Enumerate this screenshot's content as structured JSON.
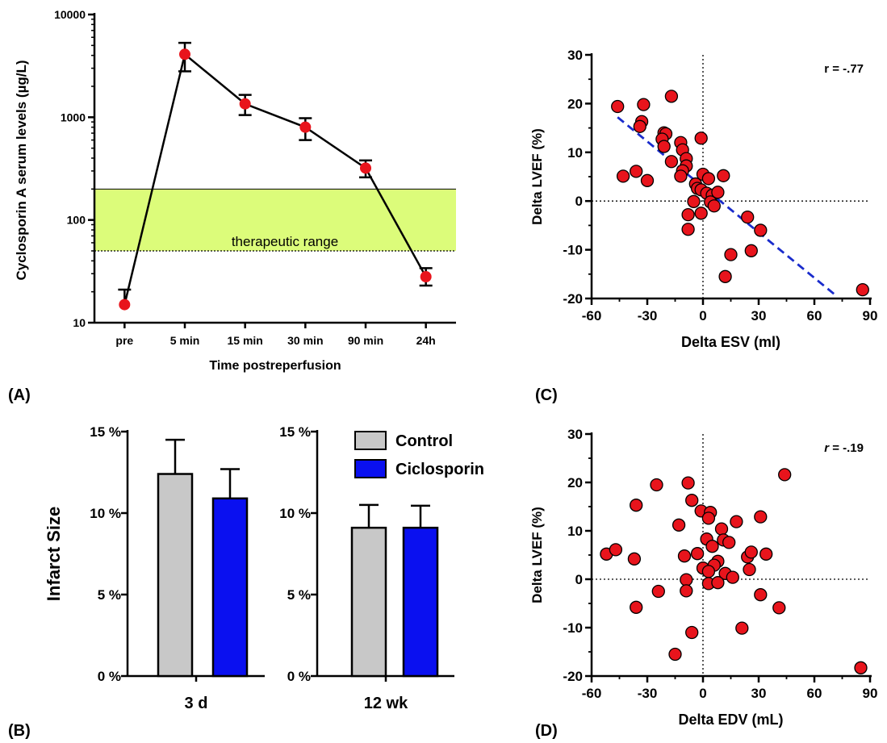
{
  "panel_labels": {
    "a": "(A)",
    "b": "(B)",
    "c": "(C)",
    "d": "(D)"
  },
  "colors": {
    "marker": "#e8141c",
    "band": "#dcfc7a",
    "control": "#c8c8c8",
    "ciclosporin": "#0a10f0",
    "regression": "#1a2ccc"
  },
  "chart_data": [
    {
      "id": "A",
      "type": "line",
      "xlabel": "Time postreperfusion",
      "ylabel": "Cyclosporin A serum levels (µg/L)",
      "yscale": "log",
      "ylim": [
        10,
        10000
      ],
      "ytick_values": [
        10,
        100,
        1000,
        10000
      ],
      "ytick_labels": [
        "10",
        "100",
        "1000",
        "10000"
      ],
      "categories": [
        "pre",
        "5 min",
        "15 min",
        "30 min",
        "90 min",
        "24h"
      ],
      "values": [
        15,
        4100,
        1350,
        800,
        320,
        28
      ],
      "err_high": [
        21,
        5300,
        1650,
        980,
        380,
        34
      ],
      "err_low": [
        15,
        2800,
        1050,
        600,
        260,
        23
      ],
      "band": {
        "low": 50,
        "high": 200,
        "label": "therapeutic range"
      }
    },
    {
      "id": "B",
      "type": "bar",
      "ylabel": "Infarct Size",
      "ylim": [
        0,
        15
      ],
      "ytick_values": [
        0,
        5,
        10,
        15
      ],
      "ytick_labels": [
        "0 %",
        "5 %",
        "10 %",
        "15 %"
      ],
      "groups": [
        "3 d",
        "12 wk"
      ],
      "series": [
        {
          "name": "Control",
          "values": [
            12.4,
            9.1
          ],
          "err": [
            2.1,
            1.4
          ]
        },
        {
          "name": "Ciclosporin",
          "values": [
            10.9,
            9.1
          ],
          "err": [
            1.8,
            1.35
          ]
        }
      ]
    },
    {
      "id": "C",
      "type": "scatter",
      "xlabel": "Delta ESV (ml)",
      "ylabel": "Delta LVEF (%)",
      "xlim": [
        -60,
        90
      ],
      "ylim": [
        -20,
        30
      ],
      "xticks": [
        -60,
        -30,
        0,
        30,
        60,
        90
      ],
      "yticks": [
        -20,
        -10,
        0,
        10,
        20,
        30
      ],
      "annotation": "r = -.77",
      "regression": {
        "x": [
          -46,
          72
        ],
        "y": [
          17.2,
          -19.5
        ]
      },
      "points": [
        [
          -46,
          19.4
        ],
        [
          -32,
          19.8
        ],
        [
          -33,
          16.3
        ],
        [
          -34,
          15.3
        ],
        [
          -17,
          21.5
        ],
        [
          -21,
          14
        ],
        [
          -20,
          13.8
        ],
        [
          -22,
          12.7
        ],
        [
          -21,
          11.2
        ],
        [
          -12,
          12
        ],
        [
          -1,
          12.9
        ],
        [
          -11,
          10.5
        ],
        [
          -17,
          8.1
        ],
        [
          -9,
          8.7
        ],
        [
          -9,
          7.2
        ],
        [
          -11,
          6.2
        ],
        [
          -12,
          5.1
        ],
        [
          -43,
          5.1
        ],
        [
          -36,
          6.1
        ],
        [
          -30,
          4.2
        ],
        [
          -4,
          3.5
        ],
        [
          -3,
          2.6
        ],
        [
          -1,
          2.3
        ],
        [
          0,
          5.5
        ],
        [
          3,
          4.6
        ],
        [
          2,
          1.6
        ],
        [
          5,
          1.2
        ],
        [
          8,
          1.8
        ],
        [
          11,
          5.2
        ],
        [
          -5,
          -0.1
        ],
        [
          4,
          -0.2
        ],
        [
          6,
          -1.0
        ],
        [
          -1,
          -2.5
        ],
        [
          -8,
          -2.8
        ],
        [
          -8,
          -5.8
        ],
        [
          24,
          -3.3
        ],
        [
          31,
          -6.0
        ],
        [
          26,
          -10.2
        ],
        [
          15,
          -11.0
        ],
        [
          12,
          -15.5
        ],
        [
          86,
          -18.2
        ]
      ]
    },
    {
      "id": "D",
      "type": "scatter",
      "xlabel": "Delta EDV (mL)",
      "ylabel": "Delta LVEF (%)",
      "xlim": [
        -60,
        90
      ],
      "ylim": [
        -20,
        30
      ],
      "xticks": [
        -60,
        -30,
        0,
        30,
        60,
        90
      ],
      "yticks": [
        -20,
        -10,
        0,
        10,
        20,
        30
      ],
      "annotation": {
        "r": "r",
        "rest": " = -.19"
      },
      "points": [
        [
          -52,
          5.2
        ],
        [
          -47,
          6.1
        ],
        [
          -37,
          4.2
        ],
        [
          -36,
          15.3
        ],
        [
          -25,
          19.5
        ],
        [
          -8,
          19.9
        ],
        [
          -6,
          16.3
        ],
        [
          44,
          21.6
        ],
        [
          -1,
          14.1
        ],
        [
          4,
          13.8
        ],
        [
          3,
          12.6
        ],
        [
          18,
          11.9
        ],
        [
          31,
          12.9
        ],
        [
          -13,
          11.2
        ],
        [
          10,
          10.4
        ],
        [
          2,
          8.3
        ],
        [
          11,
          8.1
        ],
        [
          14,
          7.6
        ],
        [
          -10,
          4.8
        ],
        [
          -3,
          5.3
        ],
        [
          5,
          6.8
        ],
        [
          8,
          3.7
        ],
        [
          6,
          2.9
        ],
        [
          24,
          4.6
        ],
        [
          26,
          5.6
        ],
        [
          34,
          5.2
        ],
        [
          25,
          2.0
        ],
        [
          0,
          2.3
        ],
        [
          3,
          1.6
        ],
        [
          12,
          1.2
        ],
        [
          16,
          0.4
        ],
        [
          -9,
          -0.1
        ],
        [
          3,
          -0.9
        ],
        [
          8,
          -0.7
        ],
        [
          -24,
          -2.5
        ],
        [
          -9,
          -2.4
        ],
        [
          31,
          -3.2
        ],
        [
          -36,
          -5.8
        ],
        [
          41,
          -5.9
        ],
        [
          -6,
          -11.0
        ],
        [
          21,
          -10.1
        ],
        [
          -15,
          -15.5
        ],
        [
          85,
          -18.3
        ]
      ]
    }
  ]
}
